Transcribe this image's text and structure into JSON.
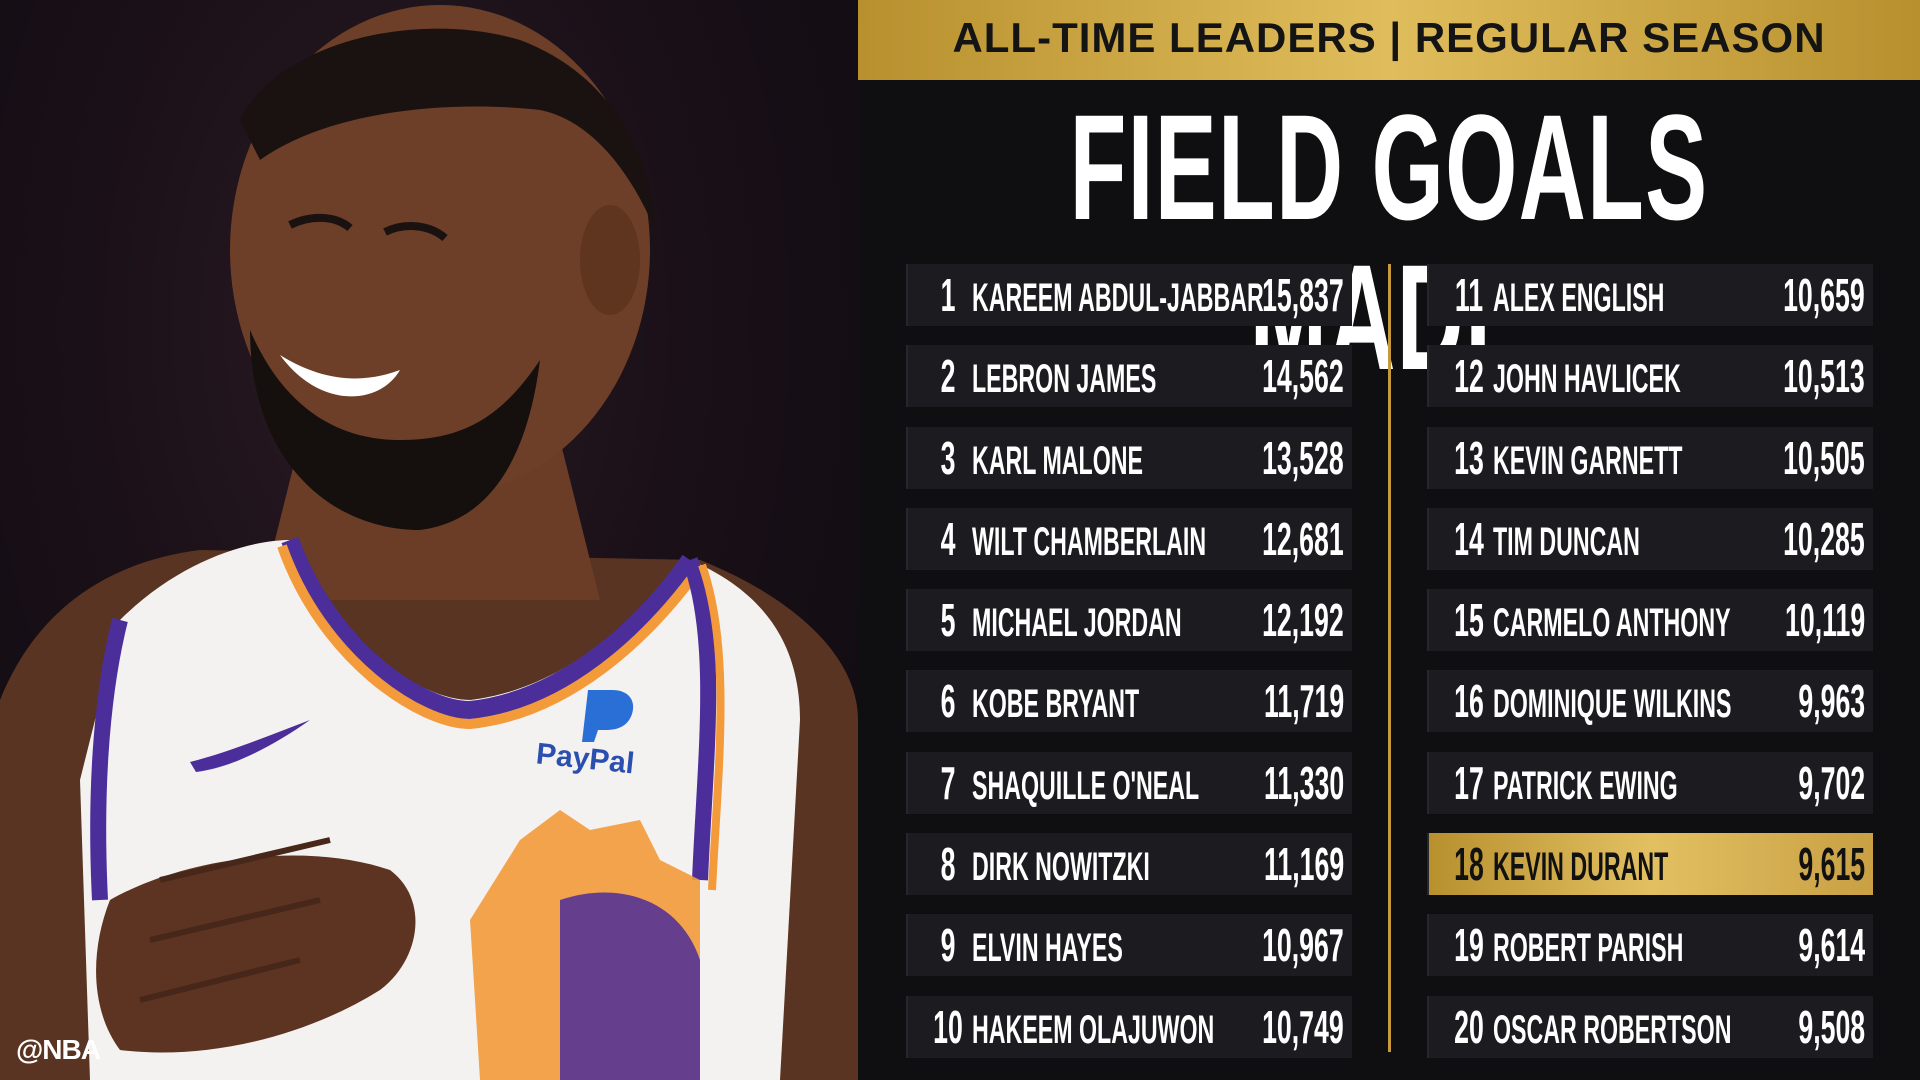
{
  "header": {
    "banner": "ALL-TIME LEADERS | REGULAR SEASON",
    "title": "FIELD GOALS MADE"
  },
  "photo": {
    "credit": "@NBA",
    "jersey_sponsor": "PayPal"
  },
  "leaders_left": [
    {
      "rank": "1",
      "name": "KAREEM ABDUL-JABBAR",
      "value": "15,837"
    },
    {
      "rank": "2",
      "name": "LEBRON JAMES",
      "value": "14,562"
    },
    {
      "rank": "3",
      "name": "KARL MALONE",
      "value": "13,528"
    },
    {
      "rank": "4",
      "name": "WILT CHAMBERLAIN",
      "value": "12,681"
    },
    {
      "rank": "5",
      "name": "MICHAEL JORDAN",
      "value": "12,192"
    },
    {
      "rank": "6",
      "name": "KOBE BRYANT",
      "value": "11,719"
    },
    {
      "rank": "7",
      "name": "SHAQUILLE O'NEAL",
      "value": "11,330"
    },
    {
      "rank": "8",
      "name": "DIRK NOWITZKI",
      "value": "11,169"
    },
    {
      "rank": "9",
      "name": "ELVIN HAYES",
      "value": "10,967"
    },
    {
      "rank": "10",
      "name": "HAKEEM OLAJUWON",
      "value": "10,749"
    }
  ],
  "leaders_right": [
    {
      "rank": "11",
      "name": "ALEX ENGLISH",
      "value": "10,659"
    },
    {
      "rank": "12",
      "name": "JOHN HAVLICEK",
      "value": "10,513"
    },
    {
      "rank": "13",
      "name": "KEVIN GARNETT",
      "value": "10,505"
    },
    {
      "rank": "14",
      "name": "TIM DUNCAN",
      "value": "10,285"
    },
    {
      "rank": "15",
      "name": "CARMELO ANTHONY",
      "value": "10,119"
    },
    {
      "rank": "16",
      "name": "DOMINIQUE WILKINS",
      "value": "9,963"
    },
    {
      "rank": "17",
      "name": "PATRICK EWING",
      "value": "9,702"
    },
    {
      "rank": "18",
      "name": "KEVIN DURANT",
      "value": "9,615",
      "highlight": true
    },
    {
      "rank": "19",
      "name": "ROBERT PARISH",
      "value": "9,614"
    },
    {
      "rank": "20",
      "name": "OSCAR ROBERTSON",
      "value": "9,508"
    }
  ],
  "colors": {
    "gold": "#d8b152",
    "panel": "#0f0f11",
    "row": "#1c1c20",
    "jersey_purple": "#4b2e9a",
    "jersey_orange": "#f39a3a"
  }
}
